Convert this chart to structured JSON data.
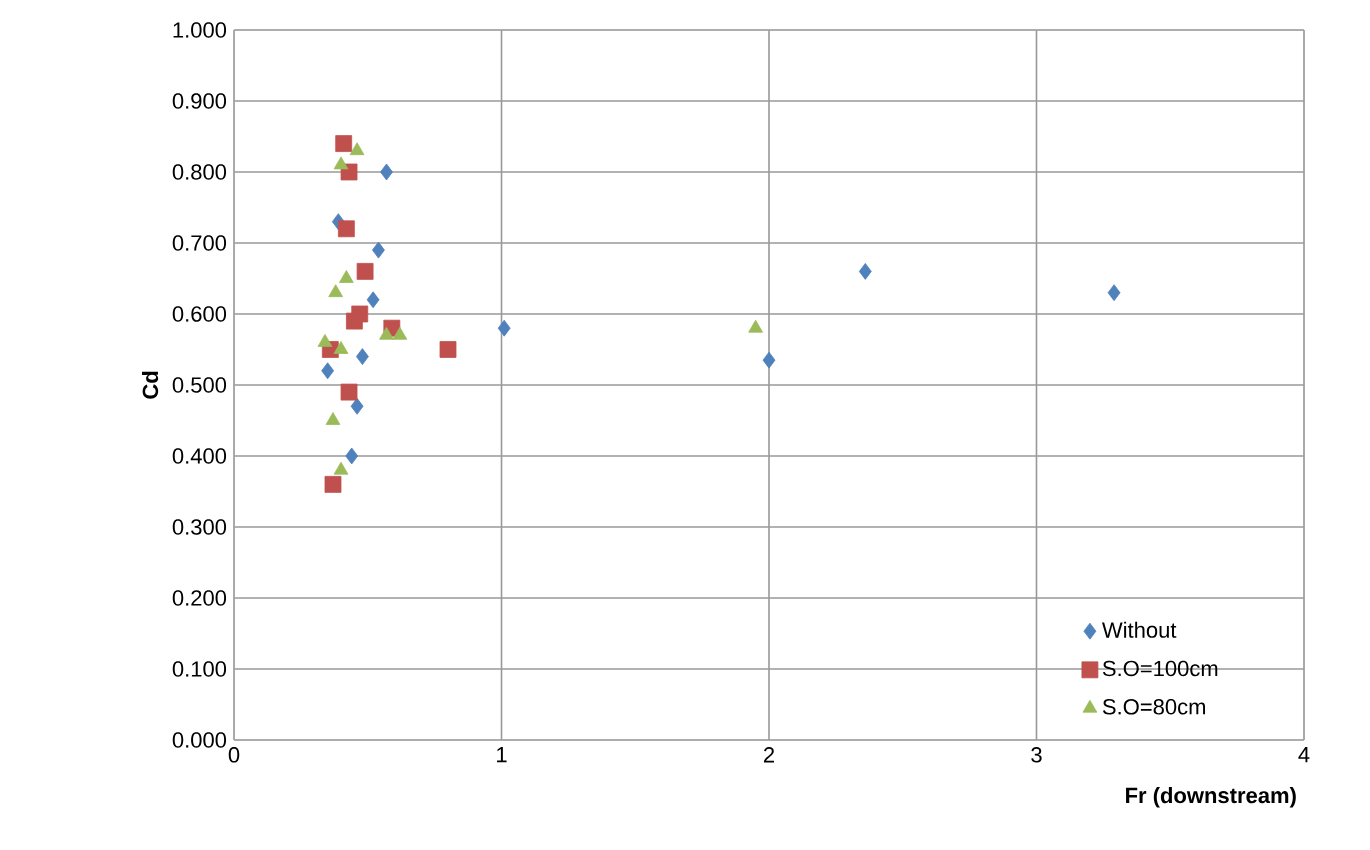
{
  "chart_data": {
    "type": "scatter",
    "xlabel": "Fr (downstream)",
    "ylabel": "Cd",
    "xlim": [
      0,
      4
    ],
    "xticks": [
      0,
      1,
      2,
      3,
      4
    ],
    "ylim": [
      0,
      1
    ],
    "yticks": [
      {
        "value": 0,
        "label": "0.000"
      },
      {
        "value": 0.1,
        "label": "0.100"
      },
      {
        "value": 0.2,
        "label": "0.200"
      },
      {
        "value": 0.3,
        "label": "0.300"
      },
      {
        "value": 0.4,
        "label": "0.400"
      },
      {
        "value": 0.5,
        "label": "0.500"
      },
      {
        "value": 0.6,
        "label": "0.600"
      },
      {
        "value": 0.7,
        "label": "0.700"
      },
      {
        "value": 0.8,
        "label": "0.800"
      },
      {
        "value": 0.9,
        "label": "0.900"
      },
      {
        "value": 1,
        "label": "1.000"
      }
    ],
    "grid": true,
    "legend": "bottom right",
    "series": [
      {
        "name": "Without",
        "color": "#4f81bd",
        "marker": "diamond",
        "x": [
          0.57,
          0.39,
          0.54,
          0.52,
          0.48,
          0.35,
          0.46,
          0.44,
          1.01,
          2.0,
          2.36,
          3.29
        ],
        "values": [
          0.8,
          0.73,
          0.69,
          0.62,
          0.54,
          0.52,
          0.47,
          0.4,
          0.58,
          0.535,
          0.66,
          0.63
        ]
      },
      {
        "name": "S.O=100cm",
        "color": "#c0504d",
        "marker": "square",
        "x": [
          0.41,
          0.43,
          0.42,
          0.49,
          0.47,
          0.45,
          0.59,
          0.36,
          0.8,
          0.43,
          0.37
        ],
        "values": [
          0.84,
          0.8,
          0.72,
          0.66,
          0.6,
          0.59,
          0.58,
          0.55,
          0.55,
          0.49,
          0.36
        ]
      },
      {
        "name": "S.O=80cm",
        "color": "#9bbb59",
        "marker": "triangle",
        "x": [
          0.46,
          0.4,
          0.42,
          0.38,
          0.34,
          0.4,
          0.57,
          0.62,
          0.37,
          0.4,
          1.95
        ],
        "values": [
          0.83,
          0.81,
          0.65,
          0.63,
          0.56,
          0.55,
          0.57,
          0.57,
          0.45,
          0.38,
          0.58
        ]
      }
    ]
  }
}
